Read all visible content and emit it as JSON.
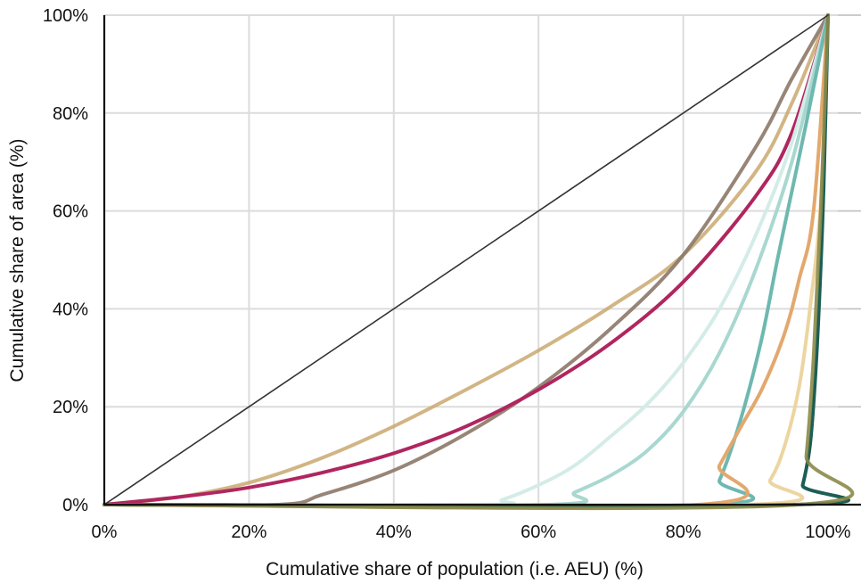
{
  "chart_data": {
    "type": "line",
    "title": "",
    "xlabel": "Cumulative share of population (i.e. AEU) (%)",
    "ylabel": "Cumulative share of area (%)",
    "xlim": [
      0,
      100
    ],
    "ylim": [
      0,
      100
    ],
    "x_ticks": [
      "0%",
      "20%",
      "40%",
      "60%",
      "80%",
      "100%"
    ],
    "y_ticks": [
      "0%",
      "20%",
      "40%",
      "60%",
      "80%",
      "100%"
    ],
    "grid": true,
    "legend": "none",
    "series": [
      {
        "color": "#c9a86e",
        "width": 4,
        "opacity": 0.85,
        "points": [
          [
            0,
            0
          ],
          [
            10,
            1.5
          ],
          [
            20,
            4.5
          ],
          [
            30,
            9.5
          ],
          [
            40,
            16
          ],
          [
            50,
            23.5
          ],
          [
            60,
            31.5
          ],
          [
            70,
            40.5
          ],
          [
            80,
            51
          ],
          [
            90,
            68
          ],
          [
            95,
            82
          ],
          [
            100,
            100
          ]
        ]
      },
      {
        "color": "#8c7868",
        "width": 4,
        "opacity": 0.9,
        "points": [
          [
            0,
            0
          ],
          [
            24,
            0
          ],
          [
            30,
            2
          ],
          [
            40,
            7
          ],
          [
            50,
            14.5
          ],
          [
            60,
            24
          ],
          [
            70,
            36
          ],
          [
            80,
            51
          ],
          [
            90,
            73
          ],
          [
            95,
            87
          ],
          [
            100,
            100
          ]
        ]
      },
      {
        "color": "#b0265f",
        "width": 4,
        "opacity": 1,
        "points": [
          [
            0,
            0
          ],
          [
            10,
            1.5
          ],
          [
            20,
            3.5
          ],
          [
            30,
            6.5
          ],
          [
            40,
            10.5
          ],
          [
            50,
            16
          ],
          [
            60,
            23.5
          ],
          [
            70,
            33
          ],
          [
            80,
            45.5
          ],
          [
            90,
            63
          ],
          [
            95,
            76
          ],
          [
            100,
            100
          ]
        ]
      },
      {
        "color": "#d4ece8",
        "width": 4,
        "opacity": 1,
        "points": [
          [
            0,
            0
          ],
          [
            52,
            0
          ],
          [
            55,
            1
          ],
          [
            60,
            4
          ],
          [
            65,
            8
          ],
          [
            70,
            14
          ],
          [
            75,
            20.5
          ],
          [
            80,
            29
          ],
          [
            85,
            40
          ],
          [
            90,
            55
          ],
          [
            95,
            74
          ],
          [
            100,
            100
          ]
        ]
      },
      {
        "color": "#a8d8d0",
        "width": 4,
        "opacity": 1,
        "points": [
          [
            0,
            0
          ],
          [
            61,
            0
          ],
          [
            65,
            2.5
          ],
          [
            70,
            6
          ],
          [
            75,
            11
          ],
          [
            80,
            19
          ],
          [
            85,
            31
          ],
          [
            90,
            48
          ],
          [
            95,
            70
          ],
          [
            100,
            100
          ]
        ]
      },
      {
        "color": "#6eb8b0",
        "width": 4,
        "opacity": 1,
        "points": [
          [
            0,
            0
          ],
          [
            83,
            0
          ],
          [
            85,
            5
          ],
          [
            87,
            13
          ],
          [
            89,
            23
          ],
          [
            91,
            35
          ],
          [
            93,
            50
          ],
          [
            95,
            64
          ],
          [
            97,
            78
          ],
          [
            100,
            100
          ]
        ]
      },
      {
        "color": "#e3a86e",
        "width": 4,
        "opacity": 1,
        "points": [
          [
            0,
            0
          ],
          [
            82,
            0
          ],
          [
            85,
            8
          ],
          [
            88,
            16
          ],
          [
            91,
            24
          ],
          [
            94,
            35
          ],
          [
            96,
            46
          ],
          [
            98,
            60
          ],
          [
            100,
            100
          ]
        ]
      },
      {
        "color": "#ecd5a0",
        "width": 4,
        "opacity": 1,
        "points": [
          [
            0,
            0
          ],
          [
            89,
            0
          ],
          [
            92,
            5
          ],
          [
            94,
            12
          ],
          [
            96,
            24
          ],
          [
            97.5,
            40
          ],
          [
            99,
            62
          ],
          [
            100,
            100
          ]
        ]
      },
      {
        "color": "#1b5e55",
        "width": 4,
        "opacity": 1,
        "points": [
          [
            0,
            0
          ],
          [
            95.5,
            0
          ],
          [
            96.5,
            4
          ],
          [
            97.5,
            12
          ],
          [
            98.2,
            25
          ],
          [
            98.8,
            42
          ],
          [
            99.4,
            65
          ],
          [
            100,
            100
          ]
        ]
      },
      {
        "color": "#8a8a4a",
        "width": 4,
        "opacity": 0.9,
        "points": [
          [
            0,
            0
          ],
          [
            96,
            0
          ],
          [
            97,
            10
          ],
          [
            98,
            30
          ],
          [
            99,
            60
          ],
          [
            100,
            100
          ]
        ]
      },
      {
        "color": "#333333",
        "width": 1.6,
        "opacity": 1,
        "points": [
          [
            0,
            0
          ],
          [
            100,
            100
          ]
        ]
      }
    ]
  }
}
